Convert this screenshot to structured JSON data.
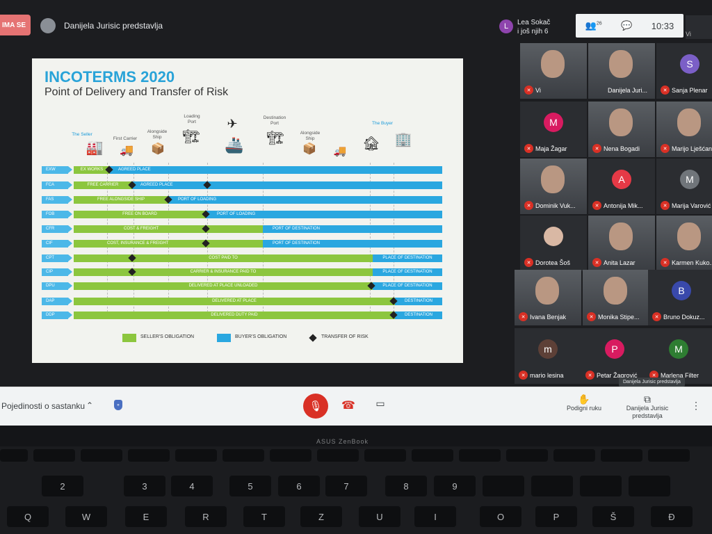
{
  "meet": {
    "presenting_chip": "IMA SE",
    "presenter_title": "Danijela Jurisic predstavlja",
    "chat_avatar_letter": "L",
    "chat_line1": "Lea Sokač",
    "chat_line2": "i još njih 6",
    "participant_count": "26",
    "clock": "10:33",
    "top_right_label": "Vi"
  },
  "slide": {
    "title": "INCOTERMS 2020",
    "subtitle": "Point of Delivery and Transfer of Risk",
    "stages": [
      "The Seller",
      "First Carrier",
      "Alongside Ship",
      "Loading Port",
      "Destination Port",
      "Alongside Ship",
      "The Buyer"
    ],
    "rows": [
      {
        "code": "EXW",
        "seller": "EX WORKS",
        "buyer": "AGREED PLACE"
      },
      {
        "code": "FCA",
        "seller": "FREE CARRIER",
        "buyer": "AGREED PLACE"
      },
      {
        "code": "FAS",
        "seller": "FREE ALONGSIDE SHIP",
        "buyer": "PORT OF LOADING"
      },
      {
        "code": "FOB",
        "seller": "FREE  ON BOARD",
        "buyer": "PORT OF LOADING"
      },
      {
        "code": "CFR",
        "seller": "COST & FREIGHT",
        "buyer": "PORT OF DESTINATION"
      },
      {
        "code": "CIF",
        "seller": "COST, INSURANCE & FREIGHT",
        "buyer": "PORT OF DESTINATION"
      },
      {
        "code": "CPT",
        "seller": "COST PAID TO",
        "buyer": "PLACE OF DESTINATION"
      },
      {
        "code": "CIP",
        "seller": "CARRIER & INSURANCE PAID TO",
        "buyer": "PLACE OF DESTINATION"
      },
      {
        "code": "DPU",
        "seller": "DELIVERED AT PLACE UNLOADED",
        "buyer": "PLACE OF DESTINATION"
      },
      {
        "code": "DAP",
        "seller": "DELIVERED AT PLACE",
        "buyer": "DESTINATION"
      },
      {
        "code": "DDP",
        "seller": "DELIVERED DUTY PAID",
        "buyer": "DESTINATION"
      }
    ],
    "legend": {
      "seller": "SELLER'S OBLIGATION",
      "buyer": "BUYER'S OBLIGATION",
      "risk": "TRANSFER OF RISK"
    },
    "colors": {
      "seller": "#8cc63e",
      "buyer": "#2aa7e0",
      "title": "#29a3d8"
    }
  },
  "participants": [
    {
      "name": "Vi",
      "type": "video"
    },
    {
      "name": "Danijela Juri...",
      "type": "video"
    },
    {
      "name": "Sanja Plenar",
      "type": "avatar",
      "letter": "S",
      "color": "#7b5fc7"
    },
    {
      "name": "Maja Žagar",
      "type": "avatar",
      "letter": "M",
      "color": "#d81b60"
    },
    {
      "name": "Nena Bogadi",
      "type": "video"
    },
    {
      "name": "Marijo Lješćan",
      "type": "video"
    },
    {
      "name": "Dominik Vuk...",
      "type": "video"
    },
    {
      "name": "Antonija Mik...",
      "type": "avatar",
      "letter": "A",
      "color": "#e53946"
    },
    {
      "name": "Marija Varović",
      "type": "avatar",
      "letter": "M",
      "color": "#70757a"
    },
    {
      "name": "Dorotea Šoš",
      "type": "photo"
    },
    {
      "name": "Anita Lazar",
      "type": "video"
    },
    {
      "name": "Karmen Kuko...",
      "type": "video"
    },
    {
      "name": "Ivana Benjak",
      "type": "video"
    },
    {
      "name": "Monika Stipe...",
      "type": "video"
    },
    {
      "name": "Bruno Dokuz...",
      "type": "avatar",
      "letter": "B",
      "color": "#3949ab"
    },
    {
      "name": "mario lesina",
      "type": "avatar",
      "letter": "m",
      "color": "#5d4037"
    },
    {
      "name": "Petar Žagrović",
      "type": "avatar",
      "letter": "P",
      "color": "#d81b60"
    },
    {
      "name": "Marlena Filter",
      "type": "avatar",
      "letter": "M",
      "color": "#2e7d32"
    }
  ],
  "tooltip": "Danijela Jurisic predstavlja",
  "bottom": {
    "meeting_details": "Pojedinosti o sastanku",
    "raise_hand": "Podigni ruku",
    "presenting_line1": "Danijela Jurisic",
    "presenting_line2": "predstavlja"
  },
  "laptop": {
    "brand": "ASUS ZenBook"
  },
  "keyboard": {
    "row1": [
      "2",
      "3",
      "4",
      "5",
      "6",
      "7",
      "8",
      "9"
    ],
    "row2": [
      "Q",
      "W",
      "E",
      "R",
      "T",
      "Z",
      "U",
      "I",
      "O",
      "P",
      "Š",
      "Đ"
    ]
  }
}
